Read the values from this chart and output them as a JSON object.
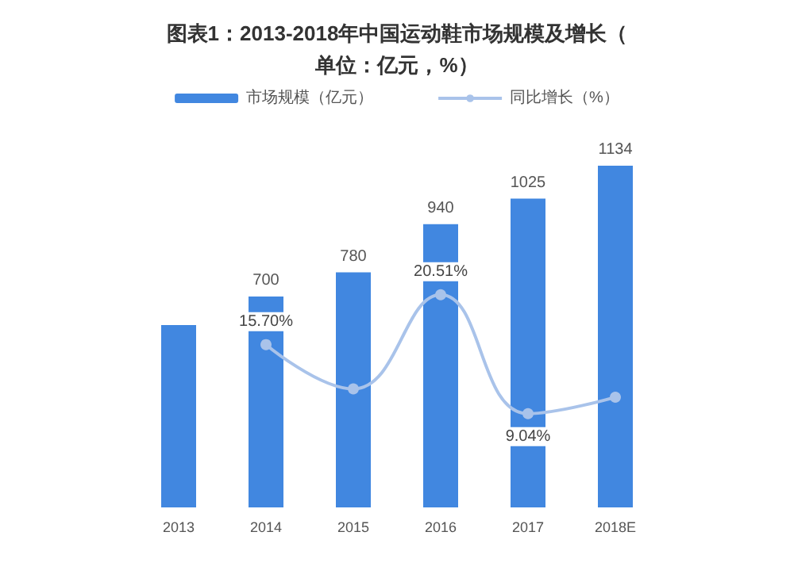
{
  "chart_data": {
    "type": "bar",
    "title": "图表1：2013-2018年中国运动鞋市场规模及增长（单位：亿元，%）",
    "categories": [
      "2013",
      "2014",
      "2015",
      "2016",
      "2017",
      "2018E"
    ],
    "series": [
      {
        "name": "市场规模（亿元）",
        "color": "#4187e0",
        "values": [
          605,
          700,
          780,
          940,
          1025,
          1134
        ],
        "value_labels": [
          null,
          "700",
          "780",
          "940",
          "1025",
          "1134"
        ]
      },
      {
        "name": "同比增长（%）",
        "type": "line",
        "axis": "y2",
        "color": "#a9c3ea",
        "values": [
          null,
          15.7,
          11.43,
          20.51,
          9.04,
          10.63
        ],
        "value_labels": [
          null,
          "15.70%",
          null,
          "20.51%",
          "9.04%",
          null
        ]
      }
    ],
    "legend": "top",
    "grid": false,
    "marker": "circle",
    "line_style": "solid",
    "tick_labels": "x"
  }
}
